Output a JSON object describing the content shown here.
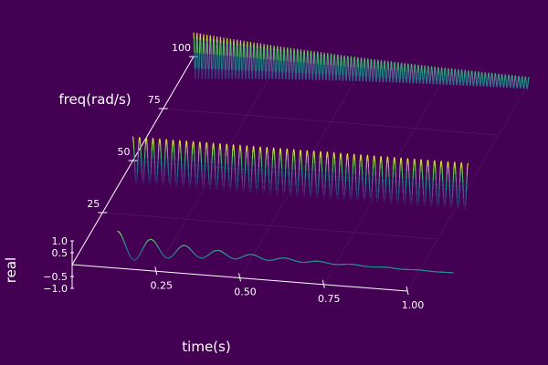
{
  "chart_data": {
    "type": "line",
    "projection": "3d",
    "title": "",
    "xlabel": "time(s)",
    "ylabel": "freq(rad/s)",
    "zlabel": "real",
    "xlim": [
      0,
      1
    ],
    "ylim": [
      0,
      100
    ],
    "zlim": [
      -1,
      1
    ],
    "x_ticks": [
      0.25,
      0.5,
      0.75,
      1.0
    ],
    "x_tick_labels": [
      "0.25",
      "0.50",
      "0.75",
      "1.00"
    ],
    "y_ticks": [
      25,
      50,
      75,
      100
    ],
    "y_tick_labels": [
      "25",
      "50",
      "75",
      "100"
    ],
    "z_ticks": [
      1.0,
      0.5,
      -0.5,
      -1.0
    ],
    "z_tick_labels": [
      "1.0",
      "0.5",
      "−0.5",
      "−1.0"
    ],
    "grid": true,
    "legend": "none",
    "colormap": [
      "#440154",
      "#3b528b",
      "#21918c",
      "#5ec962",
      "#fde725"
    ],
    "series": [
      {
        "freq": 10,
        "function": "exp(-4.5*t)*cos(freq*2*pi*t)",
        "decay": 4.5,
        "t_start": 0.1,
        "t_end": 1.1
      },
      {
        "freq": 50,
        "function": "cos(freq*2*pi*t)",
        "decay": 0,
        "t_start": 0,
        "t_end": 1.0
      },
      {
        "freq": 100,
        "function": "exp(-1.4*t)*cos(freq*2*pi*t)",
        "decay": 1.4,
        "t_start": 0,
        "t_end": 1.0
      }
    ]
  }
}
